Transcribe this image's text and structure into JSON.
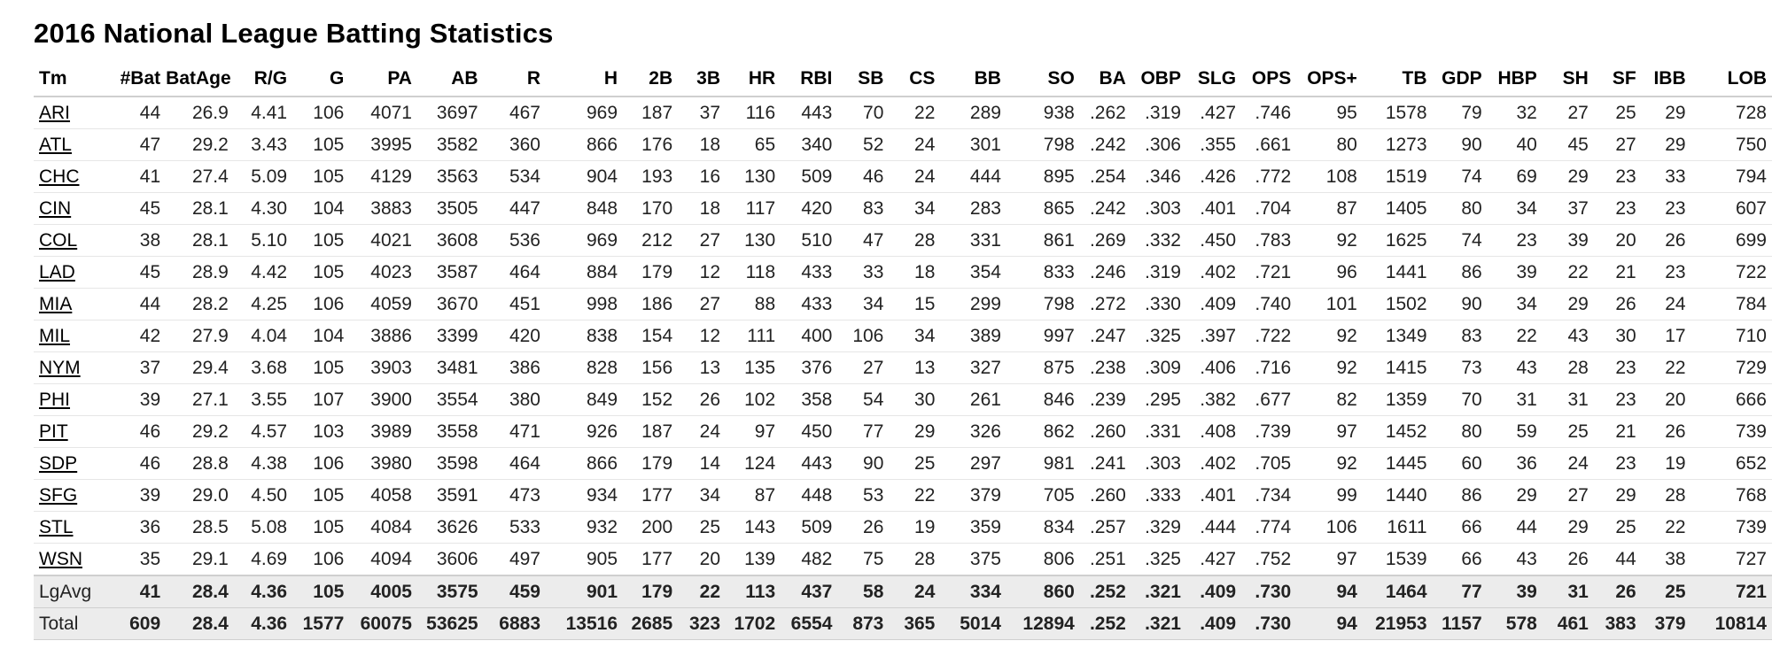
{
  "title": "2016 National League Batting Statistics",
  "columns": [
    "Tm",
    "#Bat",
    "BatAge",
    "R/G",
    "G",
    "PA",
    "AB",
    "R",
    "H",
    "2B",
    "3B",
    "HR",
    "RBI",
    "SB",
    "CS",
    "BB",
    "SO",
    "BA",
    "OBP",
    "SLG",
    "OPS",
    "OPS+",
    "TB",
    "GDP",
    "HBP",
    "SH",
    "SF",
    "IBB",
    "LOB"
  ],
  "rows": [
    [
      "ARI",
      "44",
      "26.9",
      "4.41",
      "106",
      "4071",
      "3697",
      "467",
      "969",
      "187",
      "37",
      "116",
      "443",
      "70",
      "22",
      "289",
      "938",
      ".262",
      ".319",
      ".427",
      ".746",
      "95",
      "1578",
      "79",
      "32",
      "27",
      "25",
      "29",
      "728"
    ],
    [
      "ATL",
      "47",
      "29.2",
      "3.43",
      "105",
      "3995",
      "3582",
      "360",
      "866",
      "176",
      "18",
      "65",
      "340",
      "52",
      "24",
      "301",
      "798",
      ".242",
      ".306",
      ".355",
      ".661",
      "80",
      "1273",
      "90",
      "40",
      "45",
      "27",
      "29",
      "750"
    ],
    [
      "CHC",
      "41",
      "27.4",
      "5.09",
      "105",
      "4129",
      "3563",
      "534",
      "904",
      "193",
      "16",
      "130",
      "509",
      "46",
      "24",
      "444",
      "895",
      ".254",
      ".346",
      ".426",
      ".772",
      "108",
      "1519",
      "74",
      "69",
      "29",
      "23",
      "33",
      "794"
    ],
    [
      "CIN",
      "45",
      "28.1",
      "4.30",
      "104",
      "3883",
      "3505",
      "447",
      "848",
      "170",
      "18",
      "117",
      "420",
      "83",
      "34",
      "283",
      "865",
      ".242",
      ".303",
      ".401",
      ".704",
      "87",
      "1405",
      "80",
      "34",
      "37",
      "23",
      "23",
      "607"
    ],
    [
      "COL",
      "38",
      "28.1",
      "5.10",
      "105",
      "4021",
      "3608",
      "536",
      "969",
      "212",
      "27",
      "130",
      "510",
      "47",
      "28",
      "331",
      "861",
      ".269",
      ".332",
      ".450",
      ".783",
      "92",
      "1625",
      "74",
      "23",
      "39",
      "20",
      "26",
      "699"
    ],
    [
      "LAD",
      "45",
      "28.9",
      "4.42",
      "105",
      "4023",
      "3587",
      "464",
      "884",
      "179",
      "12",
      "118",
      "433",
      "33",
      "18",
      "354",
      "833",
      ".246",
      ".319",
      ".402",
      ".721",
      "96",
      "1441",
      "86",
      "39",
      "22",
      "21",
      "23",
      "722"
    ],
    [
      "MIA",
      "44",
      "28.2",
      "4.25",
      "106",
      "4059",
      "3670",
      "451",
      "998",
      "186",
      "27",
      "88",
      "433",
      "34",
      "15",
      "299",
      "798",
      ".272",
      ".330",
      ".409",
      ".740",
      "101",
      "1502",
      "90",
      "34",
      "29",
      "26",
      "24",
      "784"
    ],
    [
      "MIL",
      "42",
      "27.9",
      "4.04",
      "104",
      "3886",
      "3399",
      "420",
      "838",
      "154",
      "12",
      "111",
      "400",
      "106",
      "34",
      "389",
      "997",
      ".247",
      ".325",
      ".397",
      ".722",
      "92",
      "1349",
      "83",
      "22",
      "43",
      "30",
      "17",
      "710"
    ],
    [
      "NYM",
      "37",
      "29.4",
      "3.68",
      "105",
      "3903",
      "3481",
      "386",
      "828",
      "156",
      "13",
      "135",
      "376",
      "27",
      "13",
      "327",
      "875",
      ".238",
      ".309",
      ".406",
      ".716",
      "92",
      "1415",
      "73",
      "43",
      "28",
      "23",
      "22",
      "729"
    ],
    [
      "PHI",
      "39",
      "27.1",
      "3.55",
      "107",
      "3900",
      "3554",
      "380",
      "849",
      "152",
      "26",
      "102",
      "358",
      "54",
      "30",
      "261",
      "846",
      ".239",
      ".295",
      ".382",
      ".677",
      "82",
      "1359",
      "70",
      "31",
      "31",
      "23",
      "20",
      "666"
    ],
    [
      "PIT",
      "46",
      "29.2",
      "4.57",
      "103",
      "3989",
      "3558",
      "471",
      "926",
      "187",
      "24",
      "97",
      "450",
      "77",
      "29",
      "326",
      "862",
      ".260",
      ".331",
      ".408",
      ".739",
      "97",
      "1452",
      "80",
      "59",
      "25",
      "21",
      "26",
      "739"
    ],
    [
      "SDP",
      "46",
      "28.8",
      "4.38",
      "106",
      "3980",
      "3598",
      "464",
      "866",
      "179",
      "14",
      "124",
      "443",
      "90",
      "25",
      "297",
      "981",
      ".241",
      ".303",
      ".402",
      ".705",
      "92",
      "1445",
      "60",
      "36",
      "24",
      "23",
      "19",
      "652"
    ],
    [
      "SFG",
      "39",
      "29.0",
      "4.50",
      "105",
      "4058",
      "3591",
      "473",
      "934",
      "177",
      "34",
      "87",
      "448",
      "53",
      "22",
      "379",
      "705",
      ".260",
      ".333",
      ".401",
      ".734",
      "99",
      "1440",
      "86",
      "29",
      "27",
      "29",
      "28",
      "768"
    ],
    [
      "STL",
      "36",
      "28.5",
      "5.08",
      "105",
      "4084",
      "3626",
      "533",
      "932",
      "200",
      "25",
      "143",
      "509",
      "26",
      "19",
      "359",
      "834",
      ".257",
      ".329",
      ".444",
      ".774",
      "106",
      "1611",
      "66",
      "44",
      "29",
      "25",
      "22",
      "739"
    ],
    [
      "WSN",
      "35",
      "29.1",
      "4.69",
      "106",
      "4094",
      "3606",
      "497",
      "905",
      "177",
      "20",
      "139",
      "482",
      "75",
      "28",
      "375",
      "806",
      ".251",
      ".325",
      ".427",
      ".752",
      "97",
      "1539",
      "66",
      "43",
      "26",
      "44",
      "38",
      "727"
    ]
  ],
  "summary_rows": [
    [
      "LgAvg",
      "41",
      "28.4",
      "4.36",
      "105",
      "4005",
      "3575",
      "459",
      "901",
      "179",
      "22",
      "113",
      "437",
      "58",
      "24",
      "334",
      "860",
      ".252",
      ".321",
      ".409",
      ".730",
      "94",
      "1464",
      "77",
      "39",
      "31",
      "26",
      "25",
      "721"
    ],
    [
      "Total",
      "609",
      "28.4",
      "4.36",
      "1577",
      "60075",
      "53625",
      "6883",
      "13516",
      "2685",
      "323",
      "1702",
      "6554",
      "873",
      "365",
      "5014",
      "12894",
      ".252",
      ".321",
      ".409",
      ".730",
      "94",
      "21953",
      "1157",
      "578",
      "461",
      "383",
      "379",
      "10814"
    ]
  ]
}
